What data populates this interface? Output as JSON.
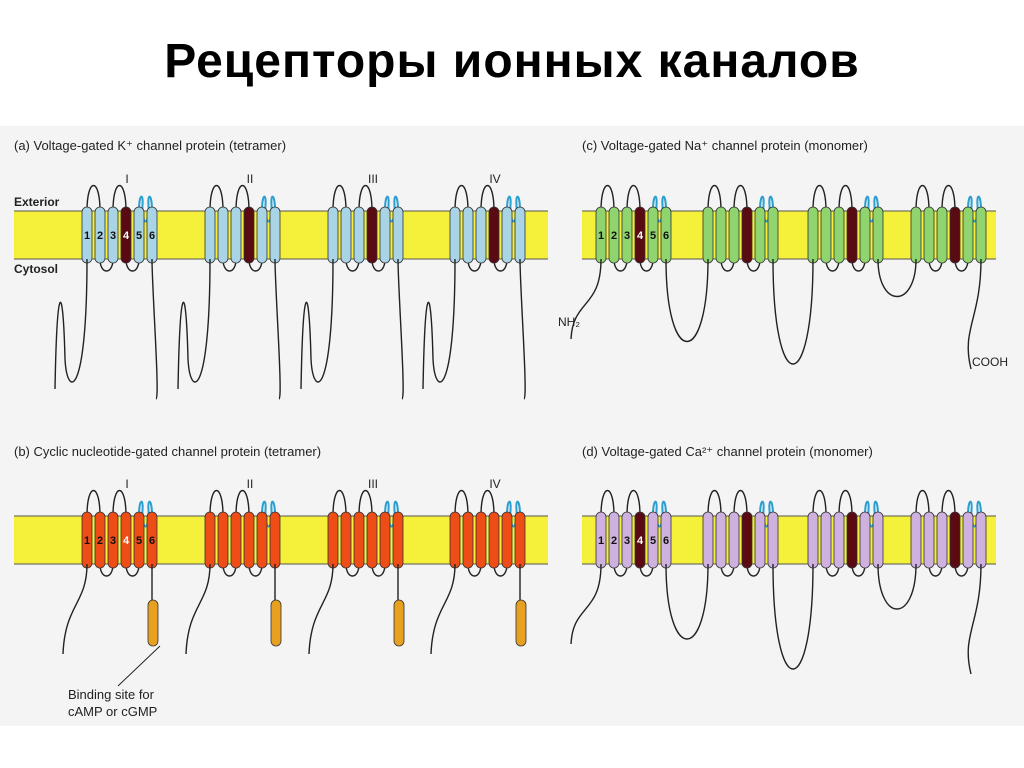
{
  "title": "Рецепторы ионных каналов",
  "colors": {
    "membrane": "#f5f03a",
    "membrane_edge": "#555555",
    "k_channel": "#a8d4e6",
    "na_channel": "#8fd46e",
    "cng_channel": "#ef4d18",
    "ca_channel": "#cfb1e0",
    "s4_segment": "#5a0a12",
    "cng_s4": "#ef4d18",
    "pore_loop": "#2a9fd0",
    "binding_site": "#e8a020",
    "line": "#222222"
  },
  "membrane_labels": {
    "exterior": "Exterior",
    "cytosol": "Cytosol"
  },
  "panels": [
    {
      "id": "a",
      "title": "(a)  Voltage-gated K⁺ channel protein (tetramer)",
      "domain_labels": [
        "I",
        "II",
        "III",
        "IV"
      ],
      "segment_labels": [
        "1",
        "2",
        "3",
        "4",
        "5",
        "6"
      ],
      "fill": "k_channel",
      "highlight": "s4_segment"
    },
    {
      "id": "c",
      "title": "(c)  Voltage-gated Na⁺ channel protein (monomer)",
      "segment_labels": [
        "1",
        "2",
        "3",
        "4",
        "5",
        "6"
      ],
      "n_terminus": "NH₂",
      "c_terminus": "COOH",
      "fill": "na_channel",
      "highlight": "s4_segment"
    },
    {
      "id": "b",
      "title": "(b)  Cyclic nucleotide-gated channel protein (tetramer)",
      "domain_labels": [
        "I",
        "II",
        "III",
        "IV"
      ],
      "segment_labels": [
        "1",
        "2",
        "3",
        "4",
        "5",
        "6"
      ],
      "binding_site_label_1": "Binding site for",
      "binding_site_label_2": "cAMP or cGMP",
      "fill": "cng_channel",
      "highlight": "cng_s4"
    },
    {
      "id": "d",
      "title": "(d)  Voltage-gated Ca²⁺ channel protein (monomer)",
      "segment_labels": [
        "1",
        "2",
        "3",
        "4",
        "5",
        "6"
      ],
      "fill": "ca_channel",
      "highlight": "s4_segment"
    }
  ]
}
